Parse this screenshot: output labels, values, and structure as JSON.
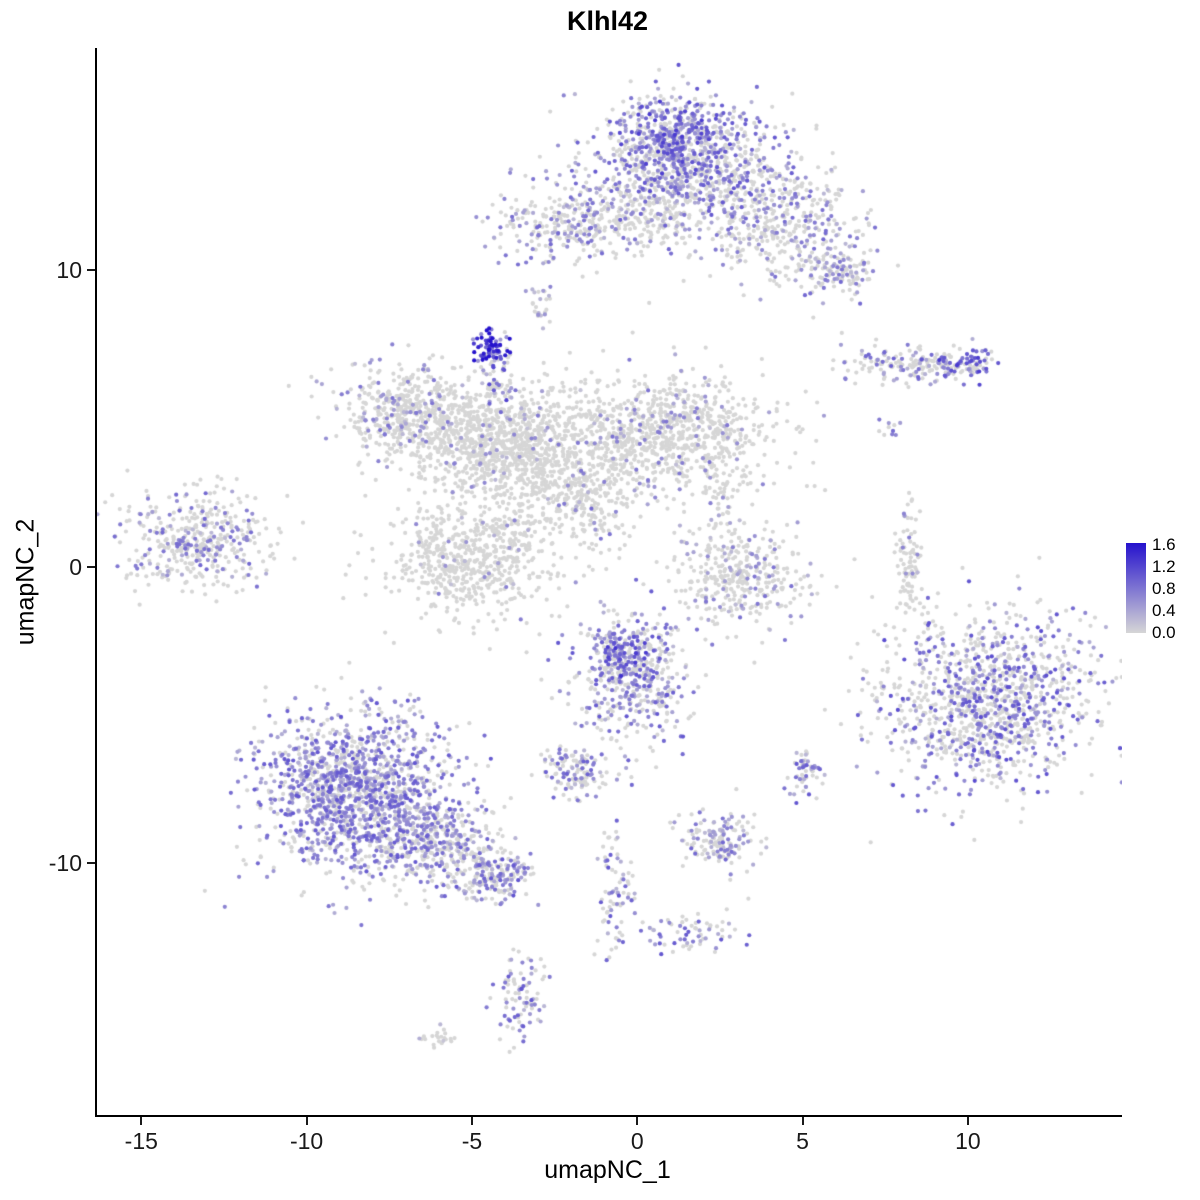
{
  "title": "Klhl42",
  "chart_data": {
    "type": "scatter",
    "title": "Klhl42",
    "xlabel": "umapNC_1",
    "ylabel": "umapNC_2",
    "xlim": [
      -16.4,
      14.6
    ],
    "ylim": [
      -18.5,
      17.5
    ],
    "xticks": [
      -15,
      -10,
      -5,
      0,
      5,
      10
    ],
    "yticks": [
      -10,
      0,
      10
    ],
    "grid": false,
    "legend_position": "right",
    "color_scale": {
      "low": "#D6D6D6",
      "high": "#2512CD",
      "min": 0.0,
      "max": 1.6,
      "legend_ticks": [
        1.6,
        1.2,
        0.8,
        0.4,
        0.0
      ]
    },
    "point_radius": 2.1,
    "clusters": [
      {
        "name": "top-main",
        "center": [
          1.6,
          13.6
        ],
        "sd": [
          1.5,
          1.0
        ],
        "n": 850,
        "expressed_fraction": 0.45,
        "expression_mean": 0.7
      },
      {
        "name": "top-main-core",
        "center": [
          1.0,
          14.5
        ],
        "sd": [
          0.8,
          0.7
        ],
        "n": 300,
        "expressed_fraction": 0.7,
        "expression_mean": 0.85
      },
      {
        "name": "top-right-arm",
        "center": [
          4.3,
          11.6
        ],
        "sd": [
          1.2,
          0.9
        ],
        "n": 400,
        "expressed_fraction": 0.3,
        "expression_mean": 0.6
      },
      {
        "name": "top-right-tip",
        "center": [
          5.9,
          9.9
        ],
        "sd": [
          0.6,
          0.5
        ],
        "n": 120,
        "expressed_fraction": 0.35,
        "expression_mean": 0.6
      },
      {
        "name": "top-left",
        "center": [
          -2.1,
          11.6
        ],
        "sd": [
          1.1,
          0.65
        ],
        "n": 300,
        "expressed_fraction": 0.4,
        "expression_mean": 0.6
      },
      {
        "name": "top-bridge",
        "center": [
          0.2,
          11.9
        ],
        "sd": [
          0.9,
          0.5
        ],
        "n": 150,
        "expressed_fraction": 0.15,
        "expression_mean": 0.5
      },
      {
        "name": "spot-upper",
        "center": [
          -2.9,
          8.9
        ],
        "sd": [
          0.18,
          0.4
        ],
        "n": 25,
        "expressed_fraction": 0.25,
        "expression_mean": 0.5
      },
      {
        "name": "dark-knot",
        "center": [
          -4.5,
          7.4
        ],
        "sd": [
          0.28,
          0.33
        ],
        "n": 70,
        "expressed_fraction": 0.95,
        "expression_mean": 1.3
      },
      {
        "name": "knot-trail",
        "center": [
          -4.2,
          6.2
        ],
        "sd": [
          0.22,
          0.6
        ],
        "n": 45,
        "expressed_fraction": 0.45,
        "expression_mean": 0.8
      },
      {
        "name": "central-left",
        "center": [
          -7.1,
          5.3
        ],
        "sd": [
          0.95,
          0.75
        ],
        "n": 380,
        "expressed_fraction": 0.22,
        "expression_mean": 0.55
      },
      {
        "name": "central-mid",
        "center": [
          -4.4,
          4.3
        ],
        "sd": [
          1.4,
          1.0
        ],
        "n": 950,
        "expressed_fraction": 0.05,
        "expression_mean": 0.5
      },
      {
        "name": "central-bridge",
        "center": [
          -2.2,
          3.0
        ],
        "sd": [
          1.2,
          1.1
        ],
        "n": 420,
        "expressed_fraction": 0.05,
        "expression_mean": 0.5
      },
      {
        "name": "central-right",
        "center": [
          0.9,
          4.5
        ],
        "sd": [
          1.7,
          0.95
        ],
        "n": 850,
        "expressed_fraction": 0.12,
        "expression_mean": 0.55
      },
      {
        "name": "central-lower",
        "center": [
          -5.1,
          0.3
        ],
        "sd": [
          1.3,
          1.0
        ],
        "n": 620,
        "expressed_fraction": 0.04,
        "expression_mean": 0.5
      },
      {
        "name": "central-thread",
        "center": [
          -1.4,
          1.6
        ],
        "sd": [
          0.5,
          0.7
        ],
        "n": 60,
        "expressed_fraction": 0.1,
        "expression_mean": 0.6
      },
      {
        "name": "central-right-trail",
        "center": [
          2.5,
          2.4
        ],
        "sd": [
          0.25,
          0.8
        ],
        "n": 45,
        "expressed_fraction": 0.08,
        "expression_mean": 0.5
      },
      {
        "name": "far-left",
        "center": [
          -13.3,
          0.9
        ],
        "sd": [
          1.15,
          0.8
        ],
        "n": 420,
        "expressed_fraction": 0.3,
        "expression_mean": 0.6
      },
      {
        "name": "right-streak",
        "center": [
          8.2,
          6.8
        ],
        "sd": [
          1.1,
          0.3
        ],
        "n": 170,
        "expressed_fraction": 0.35,
        "expression_mean": 0.7
      },
      {
        "name": "right-streak-tip",
        "center": [
          9.7,
          6.9
        ],
        "sd": [
          0.5,
          0.25
        ],
        "n": 70,
        "expressed_fraction": 0.6,
        "expression_mean": 0.9
      },
      {
        "name": "right-dots",
        "center": [
          7.6,
          4.8
        ],
        "sd": [
          0.2,
          0.3
        ],
        "n": 10,
        "expressed_fraction": 0.3,
        "expression_mean": 0.6
      },
      {
        "name": "right-strip",
        "center": [
          8.15,
          0.0
        ],
        "sd": [
          0.18,
          1.0
        ],
        "n": 90,
        "expressed_fraction": 0.08,
        "expression_mean": 0.5
      },
      {
        "name": "mid-right",
        "center": [
          3.0,
          -0.4
        ],
        "sd": [
          1.0,
          0.85
        ],
        "n": 380,
        "expressed_fraction": 0.18,
        "expression_mean": 0.55
      },
      {
        "name": "right-large",
        "center": [
          10.6,
          -4.5
        ],
        "sd": [
          1.6,
          1.45
        ],
        "n": 1150,
        "expressed_fraction": 0.4,
        "expression_mean": 0.75
      },
      {
        "name": "center-bottom",
        "center": [
          -0.2,
          -3.7
        ],
        "sd": [
          0.85,
          1.0
        ],
        "n": 420,
        "expressed_fraction": 0.45,
        "expression_mean": 0.7
      },
      {
        "name": "center-bottom-core",
        "center": [
          -0.5,
          -2.9
        ],
        "sd": [
          0.5,
          0.45
        ],
        "n": 150,
        "expressed_fraction": 0.7,
        "expression_mean": 0.9
      },
      {
        "name": "small-left-blob",
        "center": [
          -1.9,
          -6.9
        ],
        "sd": [
          0.55,
          0.4
        ],
        "n": 130,
        "expressed_fraction": 0.4,
        "expression_mean": 0.65
      },
      {
        "name": "small-right-blob",
        "center": [
          5.1,
          -7.0
        ],
        "sd": [
          0.3,
          0.35
        ],
        "n": 55,
        "expressed_fraction": 0.5,
        "expression_mean": 0.7
      },
      {
        "name": "bottomleft-large",
        "center": [
          -8.6,
          -7.6
        ],
        "sd": [
          1.45,
          1.35
        ],
        "n": 1450,
        "expressed_fraction": 0.6,
        "expression_mean": 0.7
      },
      {
        "name": "bottomleft-arm",
        "center": [
          -6.1,
          -9.4
        ],
        "sd": [
          1.0,
          0.7
        ],
        "n": 380,
        "expressed_fraction": 0.45,
        "expression_mean": 0.65
      },
      {
        "name": "bottomleft-tip",
        "center": [
          -4.3,
          -10.4
        ],
        "sd": [
          0.55,
          0.45
        ],
        "n": 170,
        "expressed_fraction": 0.5,
        "expression_mean": 0.7
      },
      {
        "name": "mid-bottom-small",
        "center": [
          2.4,
          -9.2
        ],
        "sd": [
          0.55,
          0.5
        ],
        "n": 150,
        "expressed_fraction": 0.4,
        "expression_mean": 0.6
      },
      {
        "name": "chain-vertical",
        "center": [
          -0.7,
          -11.0
        ],
        "sd": [
          0.3,
          1.2
        ],
        "n": 80,
        "expressed_fraction": 0.45,
        "expression_mean": 0.7
      },
      {
        "name": "chain-diagonal",
        "center": [
          1.6,
          -12.4
        ],
        "sd": [
          0.8,
          0.35
        ],
        "n": 65,
        "expressed_fraction": 0.45,
        "expression_mean": 0.7
      },
      {
        "name": "bottom-small",
        "center": [
          -3.6,
          -14.5
        ],
        "sd": [
          0.35,
          0.8
        ],
        "n": 90,
        "expressed_fraction": 0.5,
        "expression_mean": 0.7
      },
      {
        "name": "bottom-tiny",
        "center": [
          -6.1,
          -15.9
        ],
        "sd": [
          0.3,
          0.18
        ],
        "n": 22,
        "expressed_fraction": 0.1,
        "expression_mean": 0.4
      }
    ],
    "singles": [
      [
        -10.6,
        6.1
      ],
      [
        4.6,
        -1.9
      ],
      [
        6.6,
        -2.6
      ],
      [
        0.3,
        8.9
      ],
      [
        7.0,
        -9.3
      ],
      [
        3.3,
        -11.2
      ],
      [
        -0.2,
        7.9
      ],
      [
        12.1,
        0.3
      ]
    ]
  }
}
